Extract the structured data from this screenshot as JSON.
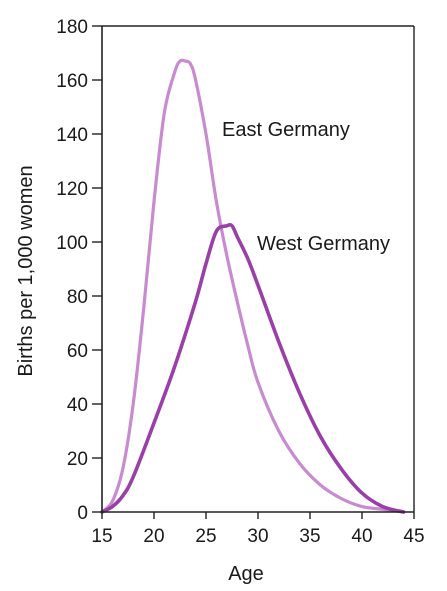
{
  "chart_data": {
    "type": "line",
    "title": "",
    "xlabel": "Age",
    "ylabel": "Births per 1,000 women",
    "xlim": [
      15,
      45
    ],
    "ylim": [
      0,
      180
    ],
    "x_ticks": [
      15,
      20,
      25,
      30,
      35,
      40,
      45
    ],
    "y_ticks": [
      0,
      20,
      40,
      60,
      80,
      100,
      120,
      140,
      160,
      180
    ],
    "grid": false,
    "series": [
      {
        "name": "East Germany",
        "color": "#c98bd0",
        "x": [
          15,
          16,
          17,
          18,
          19,
          20,
          21,
          22,
          22.5,
          23,
          23.5,
          24,
          25,
          26,
          27,
          28,
          29,
          30,
          32,
          34,
          36,
          38,
          40,
          42,
          44
        ],
        "y": [
          0,
          4,
          16,
          40,
          75,
          115,
          148,
          163,
          167,
          167,
          166,
          160,
          140,
          115,
          95,
          78,
          62,
          48,
          30,
          18,
          10,
          5,
          2,
          1,
          0
        ]
      },
      {
        "name": "West Germany",
        "color": "#9a3fa8",
        "x": [
          15,
          16,
          17,
          18,
          20,
          22,
          24,
          25,
          26,
          27,
          27.5,
          28,
          29,
          30,
          32,
          34,
          36,
          38,
          40,
          42,
          44
        ],
        "y": [
          0,
          2,
          6,
          13,
          33,
          54,
          78,
          92,
          104,
          106,
          106,
          102,
          94,
          84,
          63,
          44,
          28,
          16,
          7,
          2,
          0
        ]
      }
    ]
  }
}
